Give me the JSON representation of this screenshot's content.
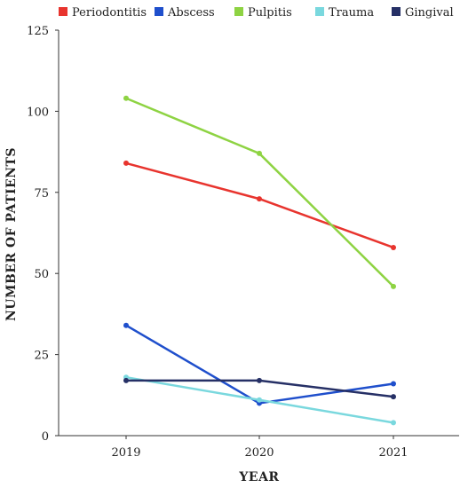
{
  "chart_data": {
    "type": "line",
    "title": "",
    "xlabel": "YEAR",
    "ylabel": "NUMBER OF PATIENTS",
    "categories": [
      "2019",
      "2020",
      "2021"
    ],
    "ylim": [
      0,
      125
    ],
    "yticks": [
      0,
      25,
      50,
      75,
      100,
      125
    ],
    "grid": false,
    "legend_position": "top",
    "series": [
      {
        "name": "Periodontitis",
        "color": "#e8342e",
        "values": [
          84,
          73,
          58
        ]
      },
      {
        "name": "Abscess",
        "color": "#1f4fcc",
        "values": [
          34,
          10,
          16
        ]
      },
      {
        "name": "Pulpitis",
        "color": "#8ed343",
        "values": [
          104,
          87,
          46
        ]
      },
      {
        "name": "Trauma",
        "color": "#7ad8de",
        "values": [
          18,
          11,
          4
        ]
      },
      {
        "name": "Gingival",
        "color": "#263066",
        "values": [
          17,
          17,
          12
        ]
      }
    ]
  }
}
